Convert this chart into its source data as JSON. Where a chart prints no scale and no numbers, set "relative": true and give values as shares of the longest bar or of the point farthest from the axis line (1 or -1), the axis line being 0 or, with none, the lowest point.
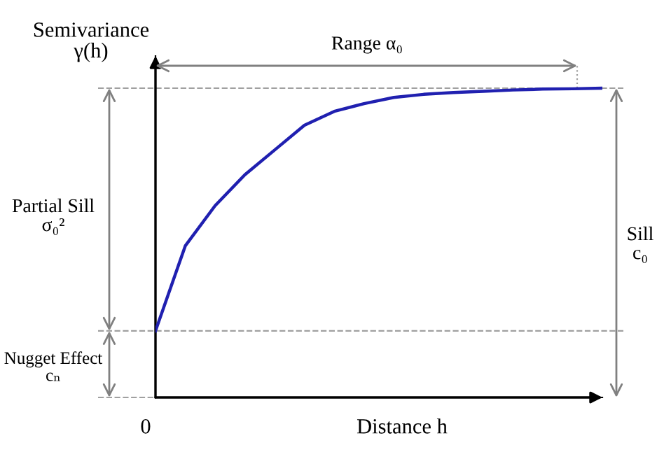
{
  "chart_data": {
    "type": "line",
    "relative": true,
    "xlabel": "Distance h",
    "ylabel": "Semivariance\nγ(h)",
    "categories": [
      null,
      null,
      null,
      null,
      null,
      null,
      null,
      null,
      null,
      null,
      null,
      null,
      null,
      null,
      null,
      null
    ],
    "series": [
      {
        "color": "#2020b0",
        "values": [
          0.215,
          0.49,
          0.62,
          0.72,
          0.8,
          0.88,
          0.925,
          0.95,
          0.97,
          0.98,
          0.986,
          0.99,
          0.994,
          0.997,
          0.998,
          1
        ]
      }
    ],
    "ref_lines": [
      {
        "axis": "y",
        "value": 1,
        "color": "#a0a0a0",
        "line_style": "dashed"
      },
      {
        "axis": "y",
        "value": 0.215,
        "color": "#a0a0a0",
        "line_style": "dashed"
      }
    ],
    "annotations": [
      "Range α₀",
      "Partial Sill\nσ₀²",
      "Nugget Effect\ncₙ",
      "Sill\nc₀",
      "0"
    ],
    "legend": false,
    "marker": "none",
    "line_style": "solid"
  }
}
